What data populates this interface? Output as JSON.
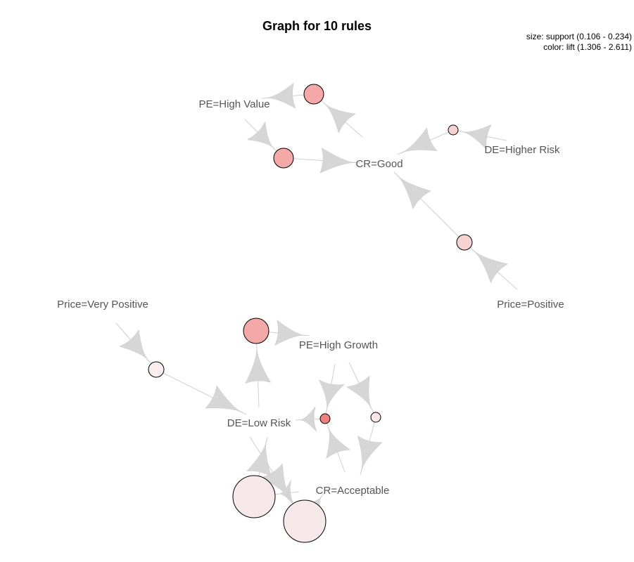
{
  "title": "Graph for 10 rules",
  "legend": {
    "size_text": "size: support (0.106 - 0.234)",
    "color_text": "color: lift (1.306 - 2.611)"
  },
  "colors": {
    "edge": "#cfcfcf",
    "arrow": "#d6d6d6",
    "node_stroke": "#000000",
    "label": "#555555"
  },
  "items": [
    {
      "id": "pe_high_value",
      "label": "PE=High Value"
    },
    {
      "id": "cr_good",
      "label": "CR=Good"
    },
    {
      "id": "de_higher_risk",
      "label": "DE=Higher Risk"
    },
    {
      "id": "price_positive",
      "label": "Price=Positive"
    },
    {
      "id": "price_very_positive",
      "label": "Price=Very Positive"
    },
    {
      "id": "pe_high_growth",
      "label": "PE=High Growth"
    },
    {
      "id": "de_low_risk",
      "label": "DE=Low Risk"
    },
    {
      "id": "cr_acceptable",
      "label": "CR=Acceptable"
    }
  ],
  "rules": [
    {
      "id": "r1",
      "fill": "#f4a8a8",
      "lhs": [
        "cr_good"
      ],
      "rhs": "pe_high_value"
    },
    {
      "id": "r2",
      "fill": "#f4a8a8",
      "lhs": [
        "pe_high_value"
      ],
      "rhs": "cr_good"
    },
    {
      "id": "r3",
      "fill": "#f7d2d2",
      "lhs": [
        "de_higher_risk"
      ],
      "rhs": "cr_good"
    },
    {
      "id": "r4",
      "fill": "#f7d2d2",
      "lhs": [
        "price_positive"
      ],
      "rhs": "cr_good"
    },
    {
      "id": "r5",
      "fill": "#f4a8a8",
      "lhs": [
        "de_low_risk"
      ],
      "rhs": "pe_high_growth"
    },
    {
      "id": "r6",
      "fill": "#f9eded",
      "lhs": [
        "price_very_positive"
      ],
      "rhs": "de_low_risk"
    },
    {
      "id": "r7",
      "fill": "#f08080",
      "lhs": [
        "pe_high_growth",
        "cr_acceptable"
      ],
      "rhs": "de_low_risk"
    },
    {
      "id": "r8",
      "fill": "#f9e6e6",
      "lhs": [
        "pe_high_growth"
      ],
      "rhs": "cr_acceptable"
    },
    {
      "id": "r9",
      "fill": "#f7e9e9",
      "lhs": [
        "cr_acceptable"
      ],
      "rhs": "de_low_risk"
    },
    {
      "id": "r10",
      "fill": "#f7e9e9",
      "lhs": [
        "de_low_risk"
      ],
      "rhs": "cr_acceptable"
    }
  ]
}
